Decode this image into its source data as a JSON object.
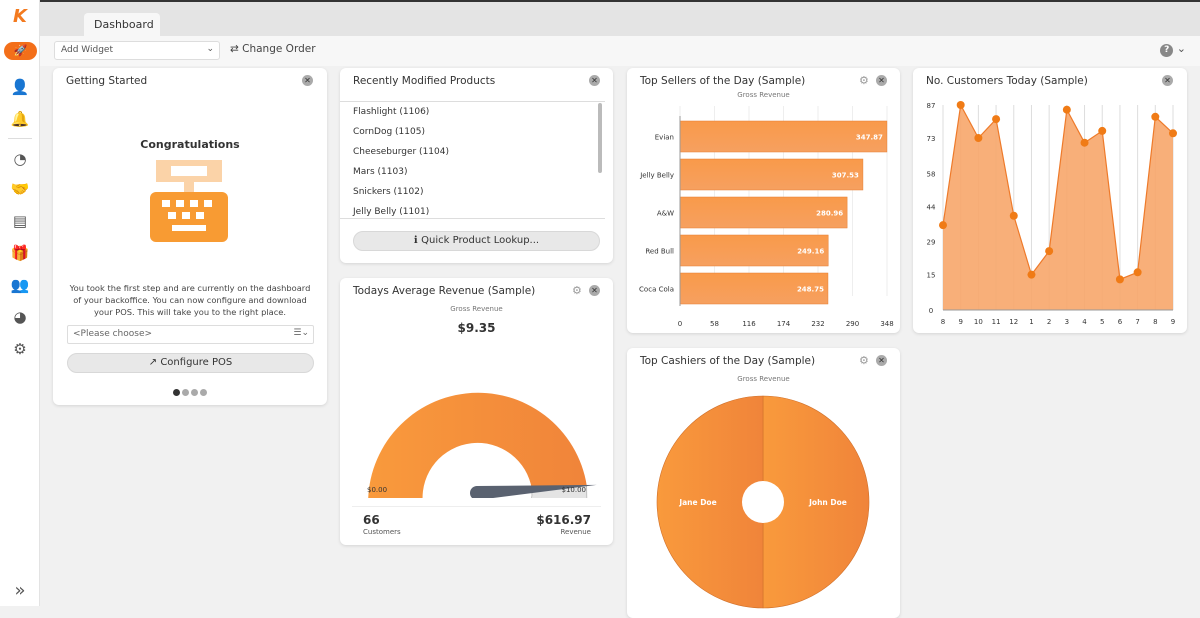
{
  "tab": "Dashboard",
  "toolbar": {
    "add_widget": "Add Widget",
    "change_order": "Change Order",
    "help": "?"
  },
  "sidebar": {
    "logo": "K",
    "icons": [
      "rocket-icon",
      "user-icon",
      "bell-icon",
      "speedometer-icon",
      "handshake-icon",
      "receipt-icon",
      "gift-icon",
      "users-icon",
      "pie-chart-icon",
      "gear-icon"
    ],
    "expand": "»"
  },
  "getting_started": {
    "title": "Getting Started",
    "heading": "Congratulations",
    "text": "You took the first step and are currently on the dashboard of your backoffice. You can now configure and download your POS. This will take you to the right place.",
    "select_placeholder": "<Please choose>",
    "configure_button": "Configure POS",
    "page": 1,
    "pages": 4
  },
  "recent_products": {
    "title": "Recently Modified Products",
    "items": [
      "Flashlight (1106)",
      "CornDog (1105)",
      "Cheeseburger (1104)",
      "Mars (1103)",
      "Snickers (1102)",
      "Jelly Belly (1101)"
    ],
    "lookup_button": "Quick Product Lookup..."
  },
  "avg_revenue": {
    "title": "Todays Average Revenue (Sample)",
    "subtitle": "Gross Revenue",
    "value": "$9.35",
    "gauge_value": 9.35,
    "min_label": "$0.00",
    "max_label": "$10.00",
    "customers": "66",
    "customers_label": "Customers",
    "revenue": "$616.97",
    "revenue_label": "Revenue"
  },
  "top_cashiers": {
    "title": "Top Cashiers of the Day (Sample)",
    "subtitle": "Gross Revenue"
  },
  "accent": "#f5883a",
  "chart_data": [
    {
      "type": "bar",
      "orientation": "horizontal",
      "title": "Top Sellers of the Day (Sample)",
      "subtitle": "Gross Revenue",
      "categories": [
        "Evian",
        "Jelly Belly",
        "A&W",
        "Red Bull",
        "Coca Cola"
      ],
      "values": [
        347.87,
        307.53,
        280.96,
        249.16,
        248.75
      ],
      "xlim": [
        0,
        348
      ],
      "xticks": [
        "0",
        "58",
        "116",
        "174",
        "232",
        "290",
        "348"
      ]
    },
    {
      "type": "area",
      "title": "No. Customers Today (Sample)",
      "x": [
        "8",
        "9",
        "10",
        "11",
        "12",
        "1",
        "2",
        "3",
        "4",
        "5",
        "6",
        "7",
        "8",
        "9"
      ],
      "values": [
        36,
        87,
        73,
        81,
        40,
        15,
        25,
        85,
        71,
        76,
        13,
        16,
        82,
        75
      ],
      "ylim": [
        0,
        87
      ],
      "yticks": [
        "0",
        "15",
        "29",
        "44",
        "58",
        "73",
        "87"
      ],
      "grid": true
    },
    {
      "type": "pie",
      "title": "Top Cashiers of the Day (Sample)",
      "labels": [
        "Jane Doe",
        "John Doe"
      ],
      "values": [
        50,
        50
      ],
      "donut": true
    }
  ]
}
